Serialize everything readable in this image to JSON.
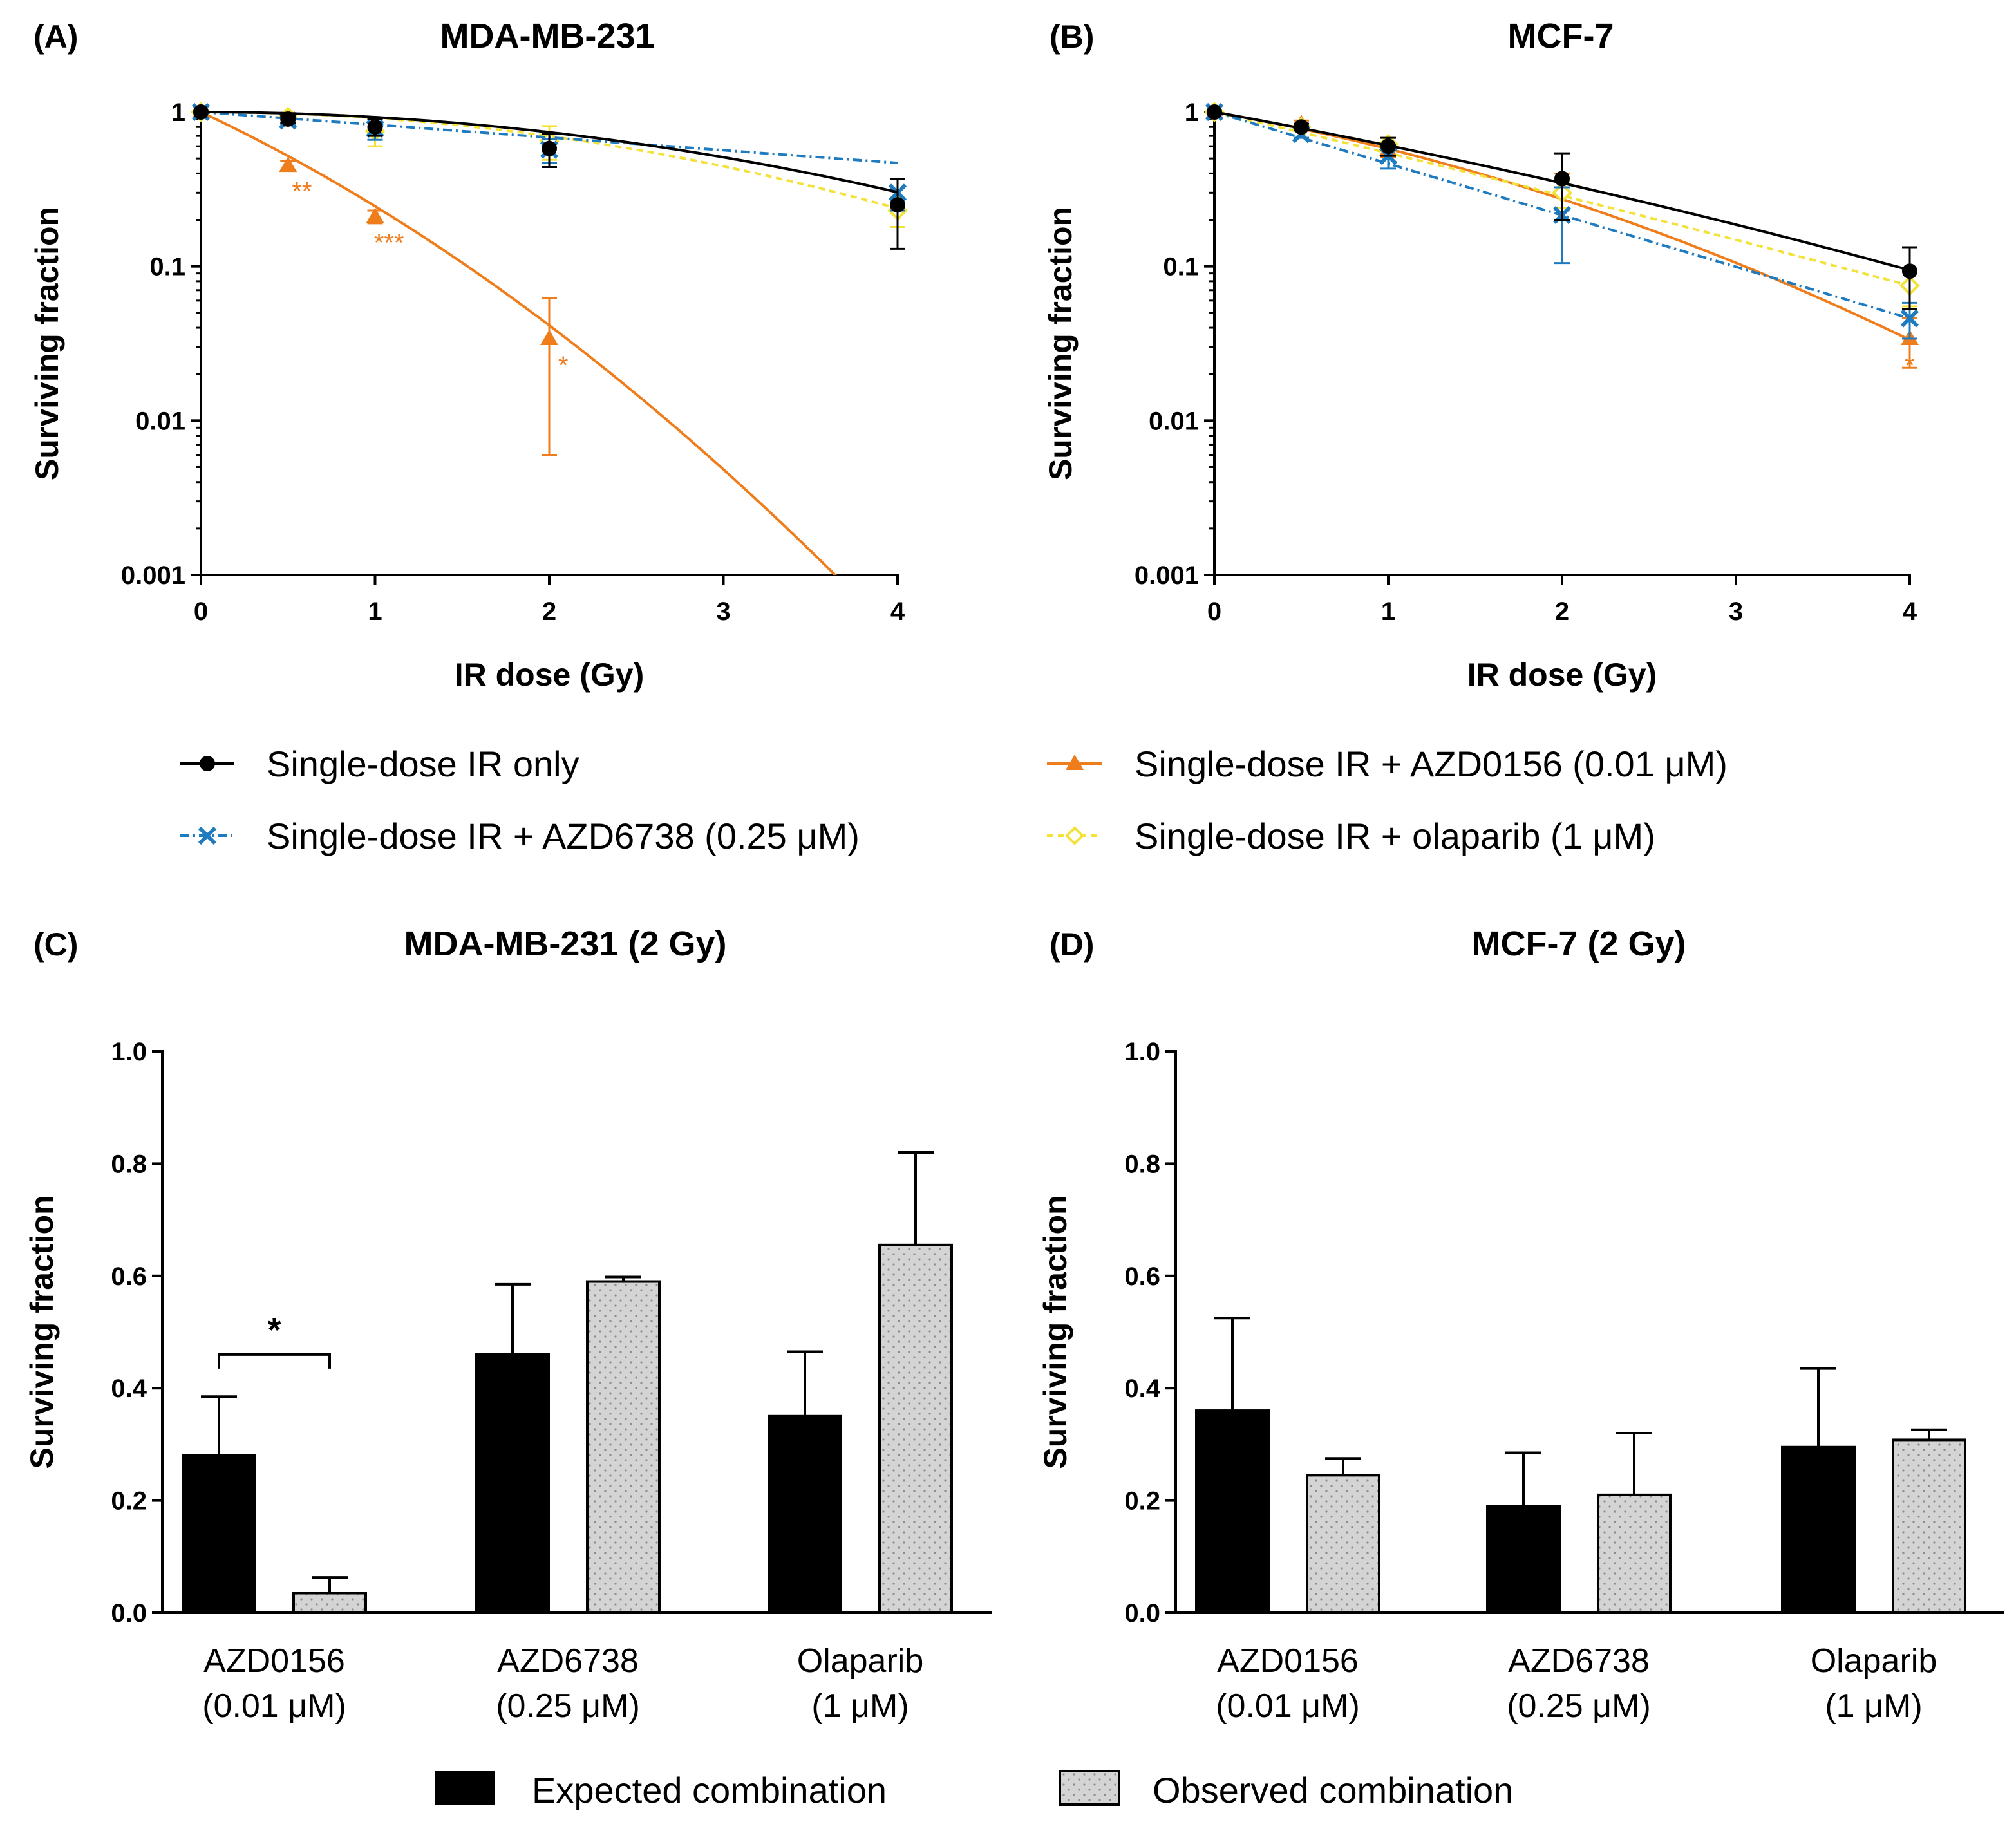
{
  "figure": {
    "panels": {
      "A": {
        "label": "(A)",
        "title": "MDA-MB-231"
      },
      "B": {
        "label": "(B)",
        "title": "MCF-7"
      },
      "C": {
        "label": "(C)",
        "title": "MDA-MB-231 (2 Gy)"
      },
      "D": {
        "label": "(D)",
        "title": "MCF-7 (2 Gy)"
      }
    },
    "line_legend": [
      {
        "name": "Single-dose IR only",
        "color": "#000000",
        "marker": "circle"
      },
      {
        "name": "Single-dose IR + AZD6738 (0.25 μM)",
        "color": "#1f7bbf",
        "marker": "x"
      },
      {
        "name": "Single-dose IR + AZD0156 (0.01 μM)",
        "color": "#f07d1c",
        "marker": "triangle"
      },
      {
        "name": "Single-dose IR + olaparib (1 μM)",
        "color": "#f2e23a",
        "marker": "diamond"
      }
    ],
    "bar_legend": [
      {
        "name": "Expected combination",
        "fill": "#000000"
      },
      {
        "name": "Observed combination",
        "fill": "#d4d4d4"
      }
    ]
  },
  "chart_data": [
    {
      "id": "A",
      "type": "line",
      "title": "MDA-MB-231",
      "xlabel": "IR dose (Gy)",
      "ylabel": "Surviving fraction",
      "yscale": "log",
      "xlim": [
        0,
        4
      ],
      "ylim": [
        0.001,
        1
      ],
      "xticks": [
        "0",
        "1",
        "2",
        "3",
        "4"
      ],
      "yticks": [
        "0.001",
        "0.01",
        "0.1",
        "1"
      ],
      "series": [
        {
          "name": "Single-dose IR only",
          "color": "#000000",
          "marker": "circle",
          "x": [
            0,
            0.5,
            1,
            2,
            4
          ],
          "y": [
            1,
            0.9,
            0.8,
            0.58,
            0.25
          ],
          "err": [
            0,
            0.05,
            0.1,
            0.14,
            0.12
          ],
          "fit": [
            0.003,
            0.074
          ]
        },
        {
          "name": "Single-dose IR + AZD6738 (0.25 μM)",
          "color": "#1f7bbf",
          "marker": "x",
          "x": [
            0,
            0.5,
            1,
            2,
            4
          ],
          "y": [
            1,
            0.88,
            0.78,
            0.57,
            0.3
          ],
          "err": [
            0,
            0.05,
            0.12,
            0.1,
            0.07
          ],
          "fit": [
            0.19,
            0.0
          ]
        },
        {
          "name": "Single-dose IR + AZD0156 (0.01 μM)",
          "color": "#f07d1c",
          "marker": "triangle",
          "x": [
            0,
            0.5,
            1,
            2
          ],
          "y": [
            1,
            0.45,
            0.21,
            0.034
          ],
          "err": [
            0,
            0.03,
            0.02,
            0.028
          ],
          "fit": [
            1.22,
            0.186
          ]
        },
        {
          "name": "Single-dose IR + olaparib (1 μM)",
          "color": "#f2e23a",
          "marker": "diamond",
          "x": [
            0,
            0.5,
            1,
            2,
            4
          ],
          "y": [
            1,
            0.93,
            0.75,
            0.65,
            0.23
          ],
          "err": [
            0,
            0.04,
            0.15,
            0.16,
            0.05
          ],
          "fit": [
            0.0,
            0.09
          ]
        }
      ],
      "annotations": [
        {
          "text": "**",
          "x": 0.58,
          "y": 0.27
        },
        {
          "text": "***",
          "x": 1.08,
          "y": 0.125
        },
        {
          "text": "*",
          "x": 2.08,
          "y": 0.02
        }
      ]
    },
    {
      "id": "B",
      "type": "line",
      "title": "MCF-7",
      "xlabel": "IR dose (Gy)",
      "ylabel": "Surviving fraction",
      "yscale": "log",
      "xlim": [
        0,
        4
      ],
      "ylim": [
        0.001,
        1
      ],
      "xticks": [
        "0",
        "1",
        "2",
        "3",
        "4"
      ],
      "yticks": [
        "0.001",
        "0.01",
        "0.1",
        "1"
      ],
      "series": [
        {
          "name": "Single-dose IR only",
          "color": "#000000",
          "marker": "circle",
          "x": [
            0,
            0.5,
            1,
            2,
            4
          ],
          "y": [
            1,
            0.8,
            0.6,
            0.37,
            0.093
          ],
          "err": [
            0,
            0.04,
            0.08,
            0.17,
            0.04
          ],
          "fit": [
            0.47,
            0.03
          ]
        },
        {
          "name": "Single-dose IR + AZD6738 (0.25 μM)",
          "color": "#1f7bbf",
          "marker": "x",
          "x": [
            0,
            0.5,
            1,
            2,
            4
          ],
          "y": [
            1,
            0.72,
            0.52,
            0.215,
            0.046
          ],
          "err": [
            0,
            0.04,
            0.09,
            0.11,
            0.012
          ],
          "fit": [
            0.77,
            0.0
          ]
        },
        {
          "name": "Single-dose IR + AZD0156 (0.01 μM)",
          "color": "#f07d1c",
          "marker": "triangle",
          "x": [
            0,
            0.5,
            1,
            2,
            4
          ],
          "y": [
            1,
            0.84,
            0.57,
            0.32,
            0.034
          ],
          "err": [
            0,
            0.04,
            0.06,
            0.08,
            0.012
          ],
          "fit": [
            0.45,
            0.1
          ]
        },
        {
          "name": "Single-dose IR + olaparib (1 μM)",
          "color": "#f2e23a",
          "marker": "diamond",
          "x": [
            0,
            0.5,
            1,
            2,
            4
          ],
          "y": [
            1,
            0.8,
            0.62,
            0.3,
            0.075
          ],
          "err": [
            0,
            0.04,
            0.06,
            0.06,
            0.02
          ],
          "fit": [
            0.6,
            0.012
          ]
        }
      ],
      "annotations": [
        {
          "text": "*",
          "x": 4.0,
          "y": 0.02
        }
      ]
    },
    {
      "id": "C",
      "type": "bar",
      "title": "MDA-MB-231 (2 Gy)",
      "ylabel": "Surviving fraction",
      "ylim": [
        0,
        1.0
      ],
      "yticks": [
        "0.0",
        "0.2",
        "0.4",
        "0.6",
        "0.8",
        "1.0"
      ],
      "categories": [
        [
          "AZD0156",
          "(0.01 μM)"
        ],
        [
          "AZD6738",
          "(0.25 μM)"
        ],
        [
          "Olaparib",
          "(1 μM)"
        ]
      ],
      "series": [
        {
          "name": "Expected combination",
          "values": [
            0.28,
            0.46,
            0.35
          ],
          "err": [
            0.105,
            0.125,
            0.115
          ]
        },
        {
          "name": "Observed combination",
          "values": [
            0.035,
            0.59,
            0.655
          ],
          "err": [
            0.028,
            0.008,
            0.165
          ]
        }
      ],
      "annotations": [
        {
          "text": "*",
          "category": 0
        }
      ]
    },
    {
      "id": "D",
      "type": "bar",
      "title": "MCF-7 (2 Gy)",
      "ylabel": "Surviving fraction",
      "ylim": [
        0,
        1.0
      ],
      "yticks": [
        "0.0",
        "0.2",
        "0.4",
        "0.6",
        "0.8",
        "1.0"
      ],
      "categories": [
        [
          "AZD0156",
          "(0.01 μM)"
        ],
        [
          "AZD6738",
          "(0.25 μM)"
        ],
        [
          "Olaparib",
          "(1 μM)"
        ]
      ],
      "series": [
        {
          "name": "Expected combination",
          "values": [
            0.36,
            0.19,
            0.295
          ],
          "err": [
            0.165,
            0.095,
            0.14
          ]
        },
        {
          "name": "Observed combination",
          "values": [
            0.245,
            0.21,
            0.308
          ],
          "err": [
            0.03,
            0.11,
            0.018
          ]
        }
      ],
      "annotations": []
    }
  ]
}
